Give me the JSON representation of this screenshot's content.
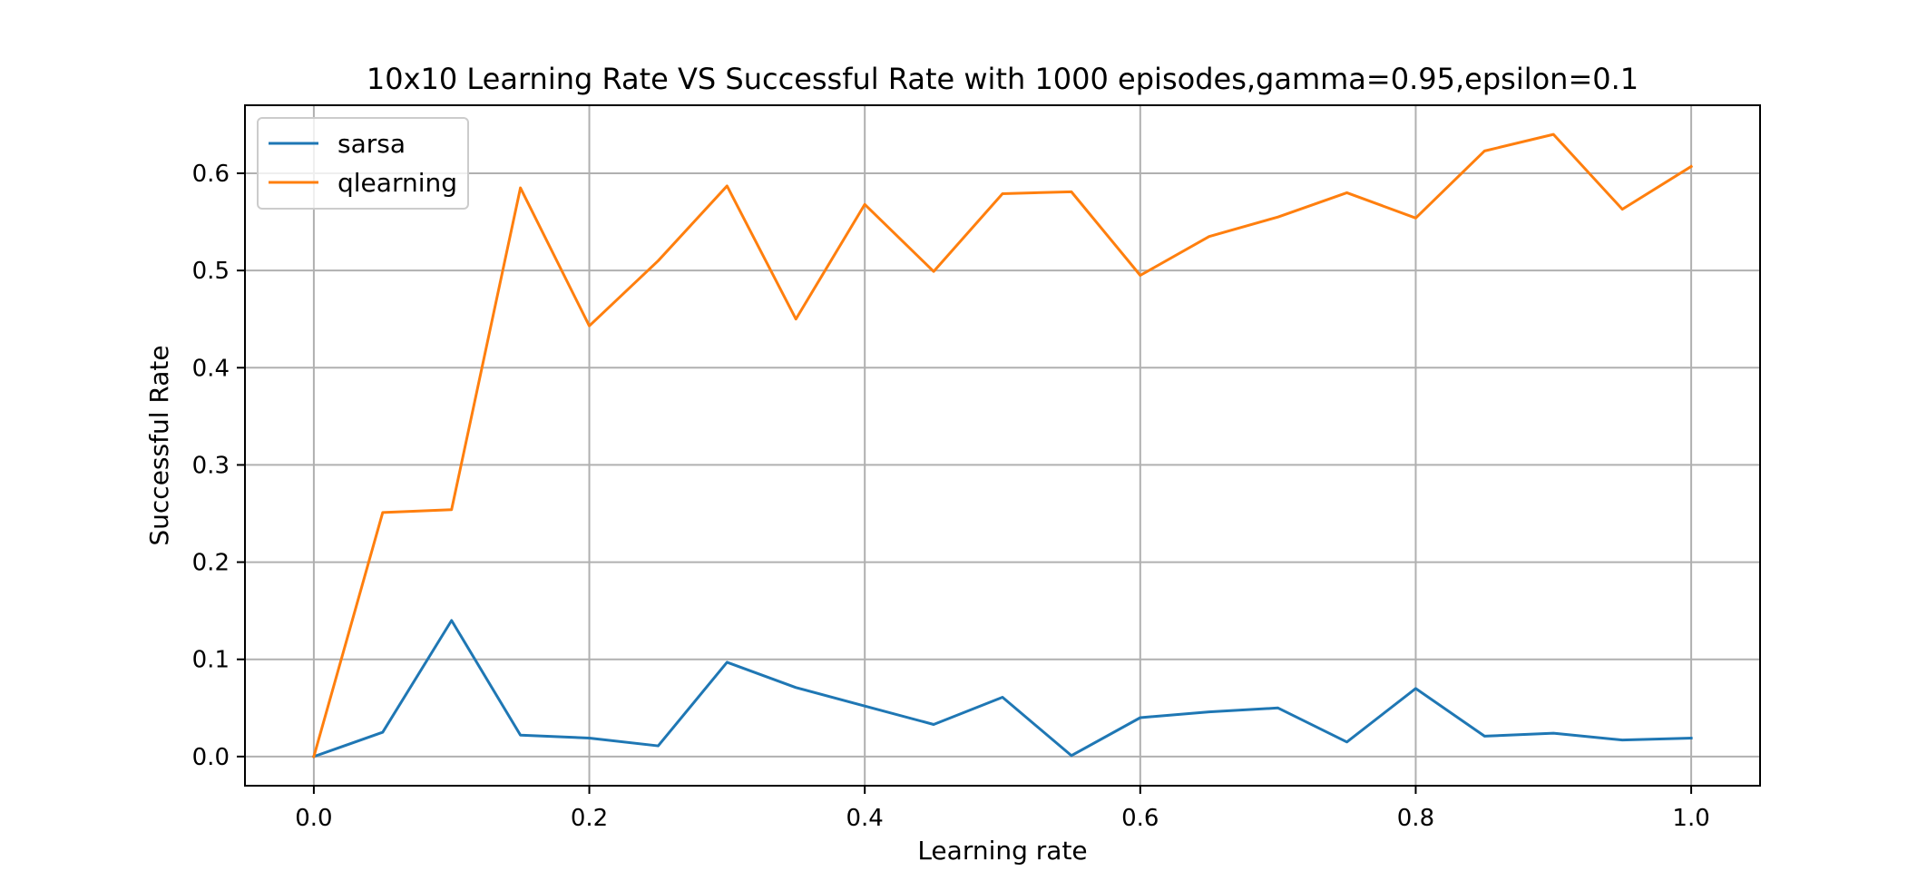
{
  "chart_data": {
    "type": "line",
    "title": "10x10 Learning Rate VS Successful Rate with 1000 episodes,gamma=0.95,epsilon=0.1",
    "xlabel": "Learning rate",
    "ylabel": "Successful Rate",
    "x": [
      0.0,
      0.05,
      0.1,
      0.15,
      0.2,
      0.25,
      0.3,
      0.35,
      0.4,
      0.45,
      0.5,
      0.55,
      0.6,
      0.65,
      0.7,
      0.75,
      0.8,
      0.85,
      0.9,
      0.95,
      1.0
    ],
    "series": [
      {
        "name": "sarsa",
        "color": "#1f77b4",
        "values": [
          0.0,
          0.025,
          0.14,
          0.022,
          0.019,
          0.011,
          0.097,
          0.071,
          0.052,
          0.033,
          0.061,
          0.001,
          0.04,
          0.046,
          0.05,
          0.015,
          0.07,
          0.021,
          0.024,
          0.017,
          0.019
        ]
      },
      {
        "name": "qlearning",
        "color": "#ff7f0e",
        "values": [
          0.0,
          0.251,
          0.254,
          0.585,
          0.443,
          0.51,
          0.587,
          0.45,
          0.568,
          0.499,
          0.579,
          0.581,
          0.495,
          0.535,
          0.555,
          0.58,
          0.554,
          0.623,
          0.64,
          0.563,
          0.607
        ]
      }
    ],
    "xlim": [
      -0.05,
      1.05
    ],
    "ylim": [
      -0.03,
      0.67
    ],
    "xticks": [
      0.0,
      0.2,
      0.4,
      0.6,
      0.8,
      1.0
    ],
    "xtick_labels": [
      "0.0",
      "0.2",
      "0.4",
      "0.6",
      "0.8",
      "1.0"
    ],
    "yticks": [
      0.0,
      0.1,
      0.2,
      0.3,
      0.4,
      0.5,
      0.6
    ],
    "ytick_labels": [
      "0.0",
      "0.1",
      "0.2",
      "0.3",
      "0.4",
      "0.5",
      "0.6"
    ],
    "grid": true,
    "legend_position": "top-left"
  }
}
